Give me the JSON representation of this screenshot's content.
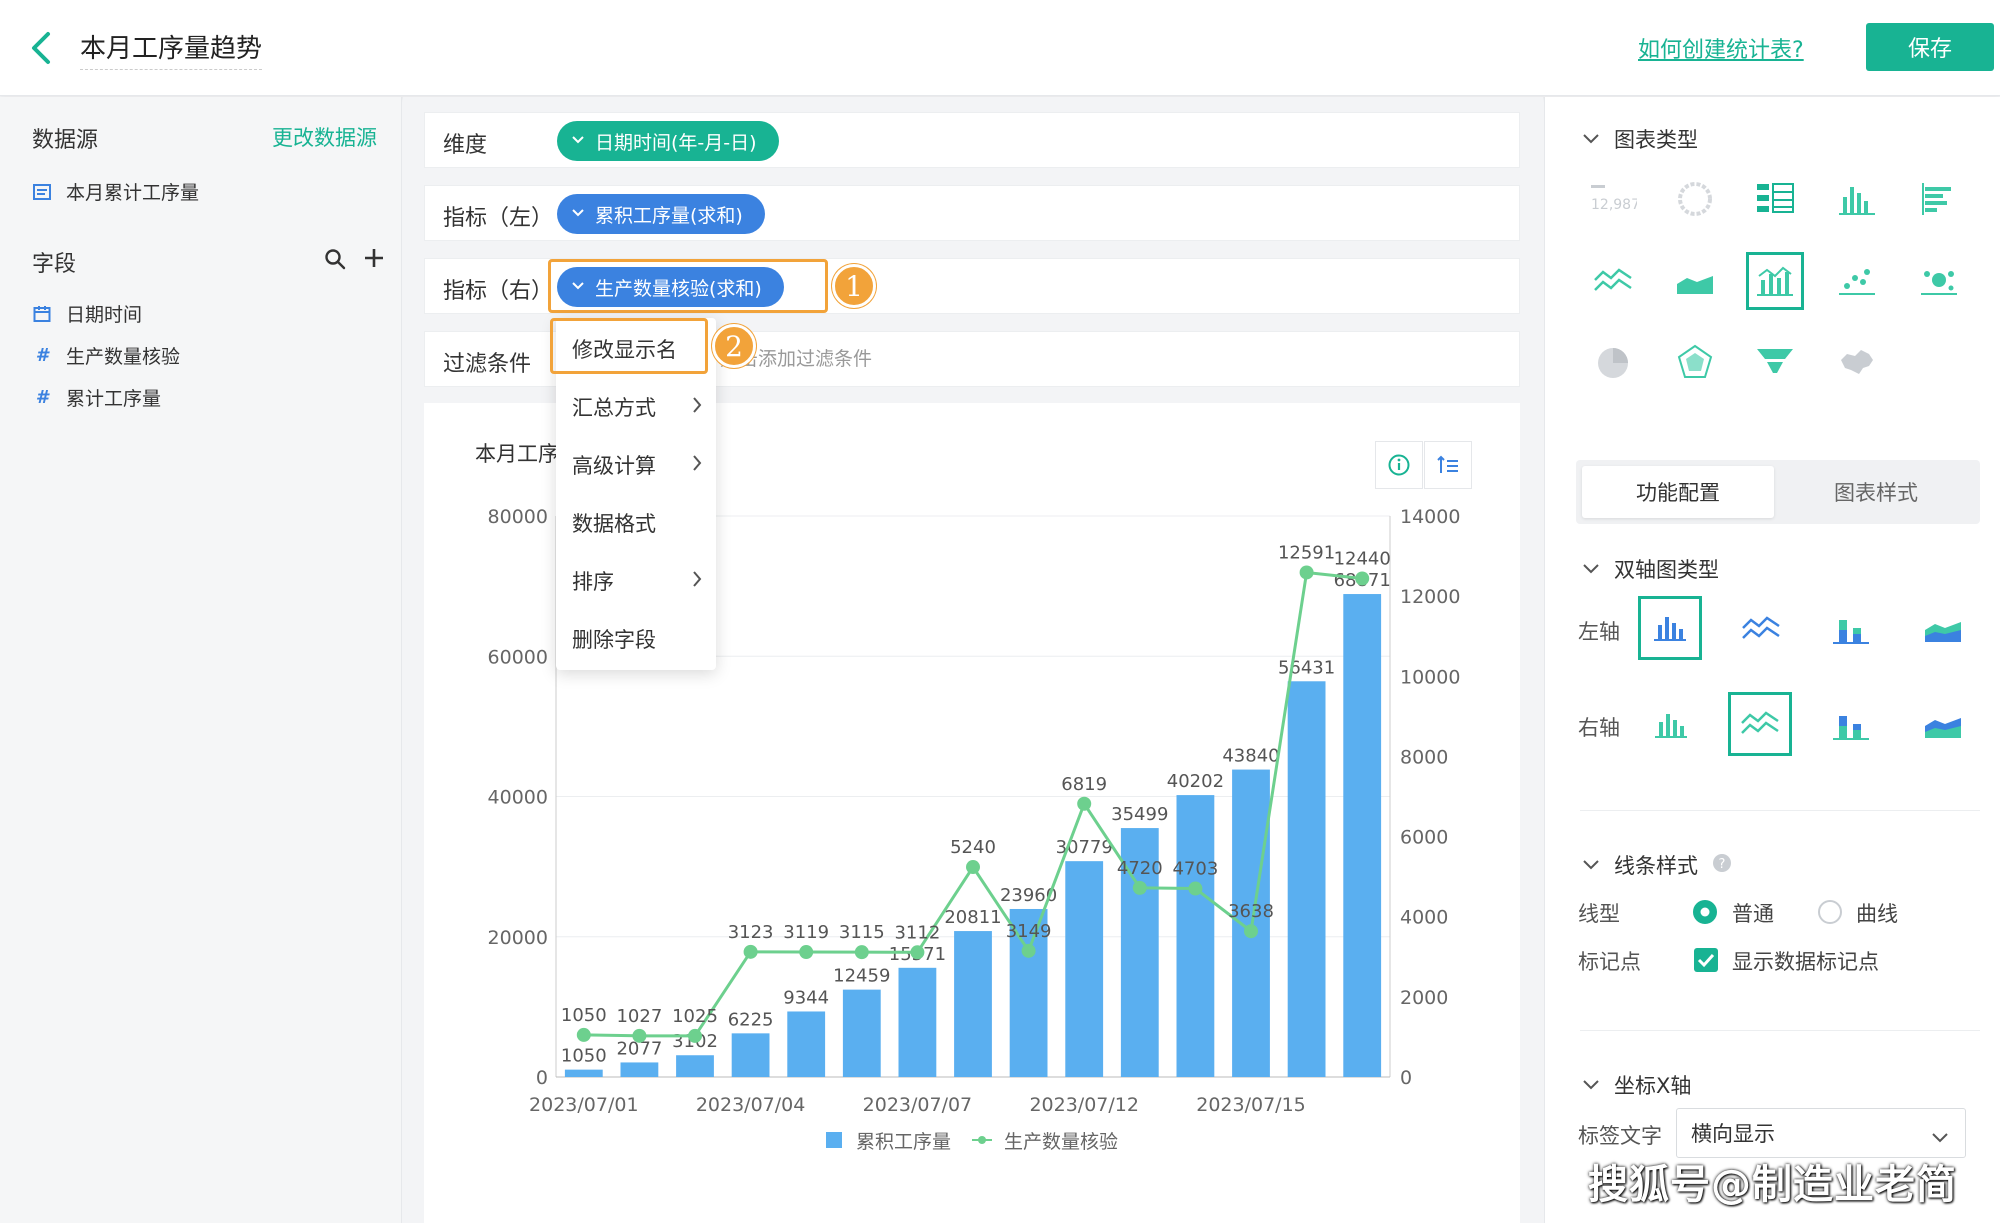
{
  "header": {
    "title": "本月工序量趋势",
    "help_link": "如何创建统计表?",
    "save_label": "保存"
  },
  "left_panel": {
    "datasource_title": "数据源",
    "change_datasource": "更改数据源",
    "datasource_item": "本月累计工序量",
    "fields_title": "字段",
    "fields": [
      "日期时间",
      "生产数量核验",
      "累计工序量"
    ]
  },
  "config": {
    "dimension_label": "维度",
    "dimension_value": "日期时间(年-月-日)",
    "metric_left_label": "指标（左）",
    "metric_left_value": "累积工序量(求和)",
    "metric_right_label": "指标（右）",
    "metric_right_value": "生产数量核验(求和)",
    "filter_label": "过滤条件",
    "filter_placeholder": "点击添加过滤条件",
    "badge1": "1",
    "badge2": "2"
  },
  "context_menu": {
    "items": [
      "修改显示名",
      "汇总方式",
      "高级计算",
      "数据格式",
      "排序",
      "删除字段"
    ],
    "arrows": [
      false,
      true,
      true,
      false,
      true,
      false
    ]
  },
  "chart_title_visible": "本月工序",
  "chart_data": {
    "type": "bar",
    "x_tick_labels": [
      "2023/07/01",
      "2023/07/04",
      "2023/07/07",
      "2023/07/12",
      "2023/07/15"
    ],
    "series": [
      {
        "name": "累积工序量",
        "type": "bar",
        "axis": "left",
        "values": [
          1050,
          2077,
          3102,
          6225,
          9344,
          12459,
          15571,
          20811,
          23960,
          30779,
          35499,
          40202,
          43840,
          56431,
          68871
        ]
      },
      {
        "name": "生产数量核验",
        "type": "line",
        "axis": "right",
        "values": [
          1050,
          1027,
          1025,
          3123,
          3119,
          3115,
          3112,
          5240,
          3149,
          6819,
          4720,
          4703,
          3638,
          12591,
          12440
        ]
      }
    ],
    "y_left": {
      "ticks": [
        0,
        20000,
        40000,
        60000,
        80000
      ],
      "range": [
        0,
        80000
      ]
    },
    "y_right": {
      "ticks": [
        0,
        2000,
        4000,
        6000,
        8000,
        10000,
        12000,
        14000
      ],
      "range": [
        0,
        14000
      ]
    },
    "legend_position": "bottom",
    "colors": {
      "bar": "#5aaff0",
      "line": "#6dd08e"
    }
  },
  "right_panel": {
    "chart_type_title": "图表类型",
    "tab_function": "功能配置",
    "tab_style": "图表样式",
    "dual_axis_title": "双轴图类型",
    "left_axis": "左轴",
    "right_axis": "右轴",
    "line_style_title": "线条样式",
    "line_type_label": "线型",
    "line_normal": "普通",
    "line_curve": "曲线",
    "marker_label": "标记点",
    "marker_option": "显示数据标记点",
    "x_axis_title": "坐标X轴",
    "label_text": "标签文字",
    "label_select": "横向显示",
    "kpi_icon_text": "12,987"
  },
  "watermark": "搜狐号@制造业老简",
  "accent_color": "#18b393"
}
